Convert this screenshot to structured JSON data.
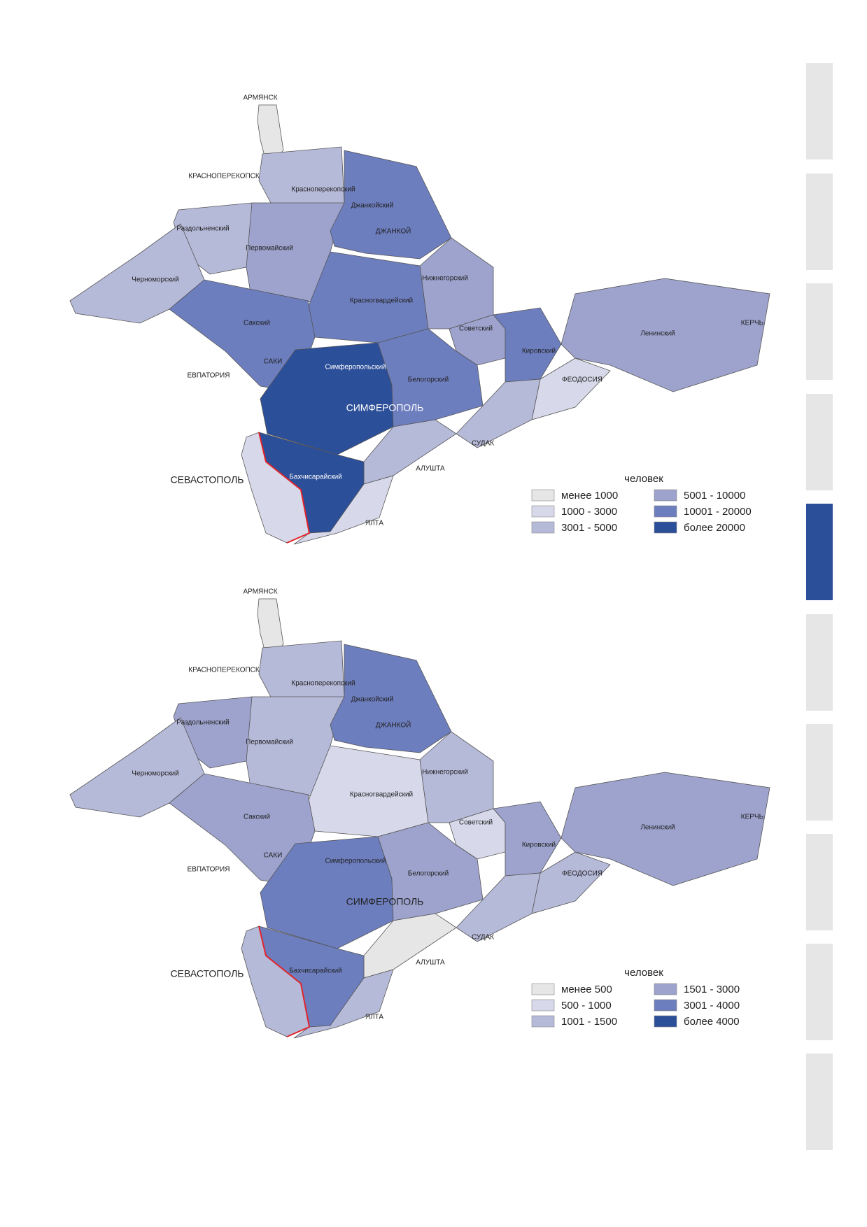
{
  "maps": [
    {
      "regions": [
        {
          "color": "#e6e6e6"
        },
        {
          "color": "#b6bad9"
        },
        {
          "color": "#b6bad9"
        },
        {
          "color": "#b6bad9"
        },
        {
          "color": "#9da3cd"
        },
        {
          "color": "#6d7ebf"
        },
        {
          "color": "#6d7ebf"
        },
        {
          "color": "#9da3cd"
        },
        {
          "color": "#9da3cd"
        },
        {
          "color": "#6d7ebf"
        },
        {
          "color": "#9da3cd"
        },
        {
          "color": "#d7d9ea"
        },
        {
          "color": "#6d7ebf"
        },
        {
          "color": "#2c4f99"
        },
        {
          "color": "#6d7ebf"
        },
        {
          "color": "#b6bad9"
        },
        {
          "color": "#b6bad9"
        },
        {
          "color": "#2c4f99"
        },
        {
          "color": "#d7d9ea"
        },
        {
          "color": "#d7d9ea"
        }
      ],
      "labels": [
        "АРМЯНСК",
        "КРАСНОПЕРЕКОПСК",
        "Красноперекопский",
        "Раздольненский",
        "Джанкойский",
        "ДЖАНКОЙ",
        "Первомайский",
        "Черноморский",
        "Нижнегорский",
        "Красногвардейский",
        "Сакский",
        "Советский",
        "Кировский",
        "Ленинский",
        "КЕРЧЬ",
        "САКИ",
        "ЕВПАТОРИЯ",
        "Симферопольский",
        "Белогорский",
        "ФЕОДОСИЯ",
        "СИМФЕРОПОЛЬ",
        "СУДАК",
        "АЛУШТА",
        "СЕВАСТОПОЛЬ",
        "Бахчисарайский",
        "ЯЛТА"
      ],
      "legend": {
        "title": "человек",
        "items": [
          {
            "label": "менее 1000",
            "color": "#e6e6e6"
          },
          {
            "label": "1000 - 3000",
            "color": "#d7d9ea"
          },
          {
            "label": "3001 - 5000",
            "color": "#b6bad9"
          },
          {
            "label": "5001 - 10000",
            "color": "#9da3cd"
          },
          {
            "label": "10001 - 20000",
            "color": "#6d7ebf"
          },
          {
            "label": "более 20000",
            "color": "#2c4f99"
          }
        ]
      }
    },
    {
      "regions": [
        {
          "color": "#e6e6e6"
        },
        {
          "color": "#b6bad9"
        },
        {
          "color": "#9da3cd"
        },
        {
          "color": "#b6bad9"
        },
        {
          "color": "#b6bad9"
        },
        {
          "color": "#6d7ebf"
        },
        {
          "color": "#d7d9ea"
        },
        {
          "color": "#b6bad9"
        },
        {
          "color": "#d7d9ea"
        },
        {
          "color": "#9da3cd"
        },
        {
          "color": "#9da3cd"
        },
        {
          "color": "#b6bad9"
        },
        {
          "color": "#9da3cd"
        },
        {
          "color": "#6d7ebf"
        },
        {
          "color": "#9da3cd"
        },
        {
          "color": "#b6bad9"
        },
        {
          "color": "#e6e6e6"
        },
        {
          "color": "#6d7ebf"
        },
        {
          "color": "#b6bad9"
        },
        {
          "color": "#b6bad9"
        }
      ],
      "labels": [
        "АРМЯНСК",
        "КРАСНОПЕРЕКОПСК",
        "Красноперекопский",
        "Раздольненский",
        "Джанкойский",
        "ДЖАНКОЙ",
        "Первомайский",
        "Черноморский",
        "Нижнегорский",
        "Красногвардейский",
        "Сакский",
        "Советский",
        "Кировский",
        "Ленинский",
        "КЕРЧЬ",
        "САКИ",
        "ЕВПАТОРИЯ",
        "Симферопольский",
        "Белогорский",
        "ФЕОДОСИЯ",
        "СИМФЕРОПОЛЬ",
        "СУДАК",
        "АЛУШТА",
        "СЕВАСТОПОЛЬ",
        "Бахчисарайский",
        "ЯЛТА"
      ],
      "legend": {
        "title": "человек",
        "items": [
          {
            "label": "менее 500",
            "color": "#e6e6e6"
          },
          {
            "label": "500 - 1000",
            "color": "#d7d9ea"
          },
          {
            "label": "1001 - 1500",
            "color": "#b6bad9"
          },
          {
            "label": "1501 - 3000",
            "color": "#9da3cd"
          },
          {
            "label": "3001 - 4000",
            "color": "#6d7ebf"
          },
          {
            "label": "более 4000",
            "color": "#2c4f99"
          }
        ]
      }
    }
  ]
}
